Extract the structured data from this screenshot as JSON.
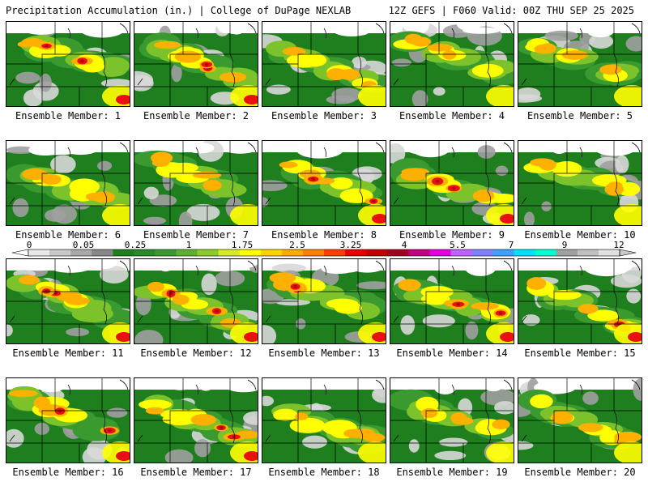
{
  "header": {
    "left": "Precipitation Accumulation (in.) | College of DuPage NEXLAB",
    "right": "12Z GEFS | F060 Valid: 00Z THU SEP 25 2025"
  },
  "colorbar": {
    "labels": [
      "0",
      "0.05",
      "0.25",
      "1",
      "1.75",
      "2.5",
      "3.25",
      "4",
      "5.5",
      "7",
      "9",
      "12"
    ],
    "colors": [
      "#e8e8e8",
      "#c8c8c8",
      "#a8a8a8",
      "#888888",
      "#1f7f1f",
      "#2a8a2a",
      "#3a9a30",
      "#5db030",
      "#8ccc2a",
      "#d8e82a",
      "#ffff00",
      "#ffd200",
      "#ffaa00",
      "#ff8000",
      "#ff4000",
      "#e80000",
      "#c00000",
      "#a00020",
      "#c00080",
      "#e000e0",
      "#c060ff",
      "#8080ff",
      "#40a0ff",
      "#00e0ff",
      "#00ffd0",
      "#a0a0a0",
      "#c0c0c0",
      "#e0e0e0"
    ]
  },
  "members": [
    {
      "caption": "Ensemble Member: 1"
    },
    {
      "caption": "Ensemble Member: 2"
    },
    {
      "caption": "Ensemble Member: 3"
    },
    {
      "caption": "Ensemble Member: 4"
    },
    {
      "caption": "Ensemble Member: 5"
    },
    {
      "caption": "Ensemble Member: 6"
    },
    {
      "caption": "Ensemble Member: 7"
    },
    {
      "caption": "Ensemble Member: 8"
    },
    {
      "caption": "Ensemble Member: 9"
    },
    {
      "caption": "Ensemble Member: 10"
    },
    {
      "caption": "Ensemble Member: 11"
    },
    {
      "caption": "Ensemble Member: 12"
    },
    {
      "caption": "Ensemble Member: 13"
    },
    {
      "caption": "Ensemble Member: 14"
    },
    {
      "caption": "Ensemble Member: 15"
    },
    {
      "caption": "Ensemble Member: 16"
    },
    {
      "caption": "Ensemble Member: 17"
    },
    {
      "caption": "Ensemble Member: 18"
    },
    {
      "caption": "Ensemble Member: 19"
    },
    {
      "caption": "Ensemble Member: 20"
    }
  ],
  "palette": {
    "gray_light": "#d8d8d8",
    "gray_mid": "#a0a0a0",
    "green_dark": "#1f7f1f",
    "green": "#3a9a30",
    "green_light": "#7cc22a",
    "yellow": "#ffff00",
    "orange": "#ffb000",
    "red": "#e81010",
    "darkred": "#a00020",
    "magenta": "#c040c0"
  }
}
